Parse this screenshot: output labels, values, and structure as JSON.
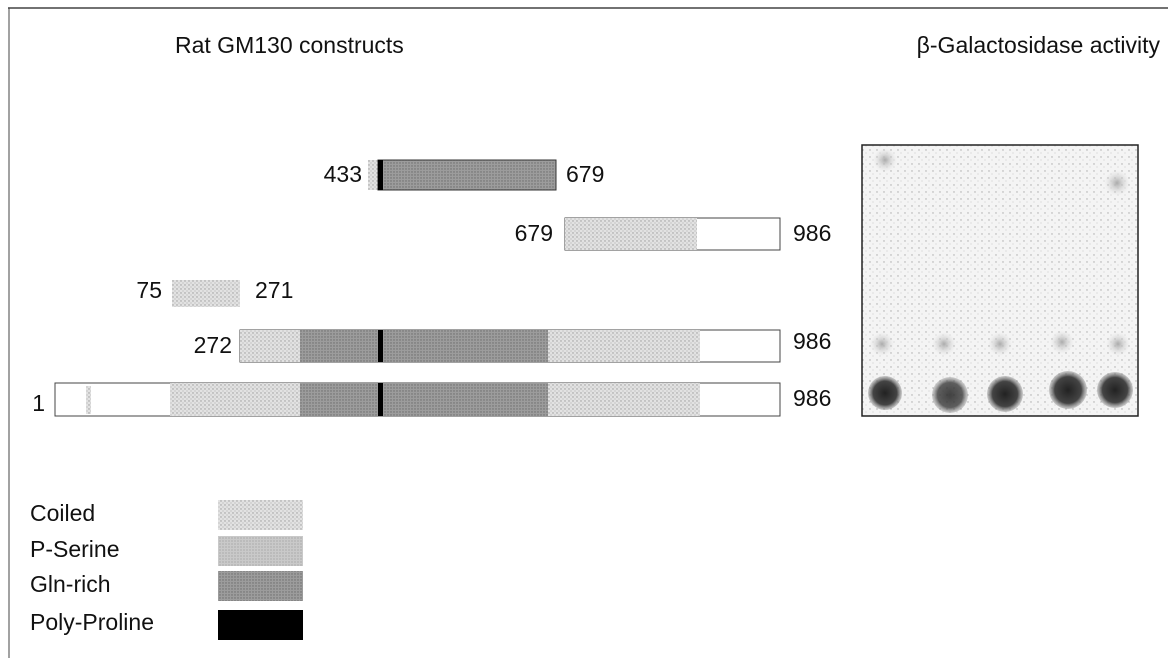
{
  "header": {
    "left_title": "Rat GM130 constructs",
    "right_title": "β-Galactosidase activity"
  },
  "constructs": [
    {
      "start": 433,
      "end": 679
    },
    {
      "start": 679,
      "end": 986
    },
    {
      "start": 75,
      "end": 271
    },
    {
      "start": 272,
      "end": 986
    },
    {
      "start": 1,
      "end": 986
    }
  ],
  "legend": [
    {
      "label": "Coiled"
    },
    {
      "label": "P-Serine"
    },
    {
      "label": "Gln-rich"
    },
    {
      "label": "Poly-Proline"
    }
  ]
}
